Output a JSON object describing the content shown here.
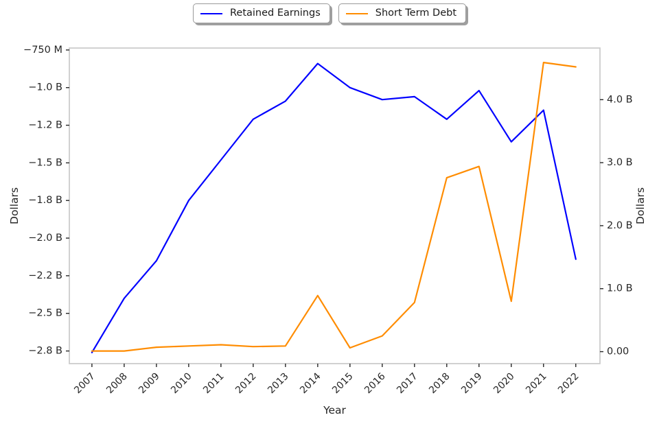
{
  "figure": {
    "background": "#ffffff",
    "text_color": "#262626",
    "spine_color": "#cccccc",
    "tick_color": "#262626"
  },
  "chart_data": {
    "type": "line",
    "title": "",
    "xlabel": "Year",
    "ylabel_left": "Dollars",
    "ylabel_right": "Dollars",
    "grid": false,
    "legend_position": "top-center",
    "x": [
      2007,
      2008,
      2009,
      2010,
      2011,
      2012,
      2013,
      2014,
      2015,
      2016,
      2017,
      2018,
      2019,
      2020,
      2021,
      2022
    ],
    "x_tick_labels": [
      "2007",
      "2008",
      "2009",
      "2010",
      "2011",
      "2012",
      "2013",
      "2014",
      "2015",
      "2016",
      "2017",
      "2018",
      "2019",
      "2020",
      "2021",
      "2022"
    ],
    "series": [
      {
        "name": "Retained Earnings",
        "axis": "left",
        "color": "#0000ff",
        "unit": "billions of dollars",
        "values": [
          -2.76,
          -2.4,
          -2.15,
          -1.75,
          -1.48,
          -1.21,
          -1.09,
          -0.84,
          -1.0,
          -1.08,
          -1.06,
          -1.21,
          -1.02,
          -1.36,
          -1.15,
          -2.14
        ]
      },
      {
        "name": "Short Term Debt",
        "axis": "right",
        "color": "#ff8c00",
        "unit": "billions of dollars",
        "values": [
          0.01,
          0.01,
          0.07,
          0.09,
          0.11,
          0.08,
          0.09,
          0.89,
          0.06,
          0.25,
          0.78,
          2.76,
          2.94,
          0.8,
          4.59,
          4.52
        ]
      }
    ],
    "left_axis": {
      "label": "Dollars",
      "lim": [
        -2.834,
        -0.737
      ],
      "tick_values": [
        -0.75,
        -1.0,
        -1.25,
        -1.5,
        -1.75,
        -2.0,
        -2.25,
        -2.5,
        -2.75
      ],
      "tick_labels": [
        "−750 M",
        "−1.0 B",
        "−1.2 B",
        "−1.5 B",
        "−1.8 B",
        "−2.0 B",
        "−2.2 B",
        "−2.5 B",
        "−2.8 B"
      ]
    },
    "right_axis": {
      "label": "Dollars",
      "lim": [
        -0.19,
        4.82
      ],
      "tick_values": [
        0,
        1,
        2,
        3,
        4
      ],
      "tick_labels": [
        "0.00",
        "1.0 B",
        "2.0 B",
        "3.0 B",
        "4.0 B"
      ]
    },
    "x_axis": {
      "label": "Year",
      "lim": [
        2006.3,
        2022.75
      ]
    }
  }
}
